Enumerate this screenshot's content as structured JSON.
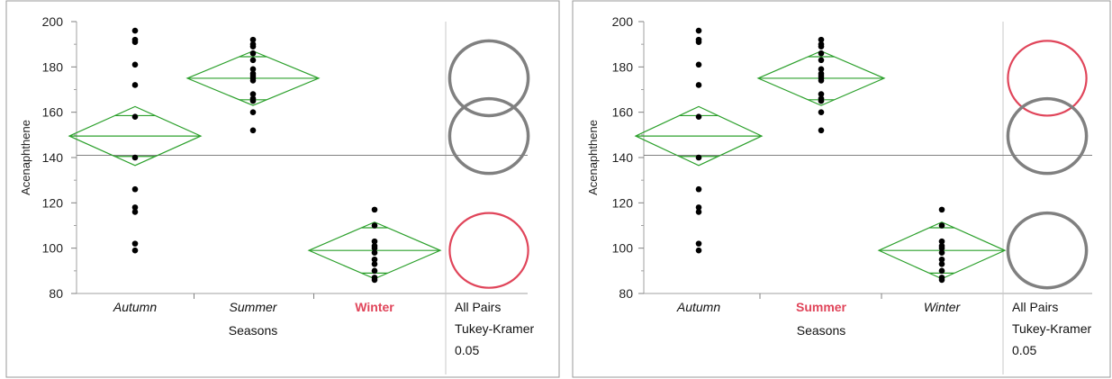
{
  "chart_data": [
    {
      "type": "scatter",
      "variant": "oneway-means-diamonds-with-tukey-comparison-circles",
      "ylabel": "Acenaphthene",
      "xlabel": "Seasons",
      "ylim": [
        80,
        200
      ],
      "yticks": [
        80,
        100,
        120,
        140,
        160,
        180,
        200
      ],
      "grand_mean": 141,
      "categories": [
        "Autumn",
        "Summer",
        "Winter"
      ],
      "selected_category": "Winter",
      "points": {
        "Autumn": [
          196,
          192,
          191,
          181,
          172,
          158,
          140,
          126,
          118,
          116,
          102,
          99
        ],
        "Summer": [
          192,
          190,
          189,
          186,
          183,
          179,
          177,
          176,
          175,
          174,
          168,
          166,
          165,
          160,
          152
        ],
        "Winter": [
          117,
          110,
          103,
          101,
          100,
          98,
          95,
          93,
          90,
          87,
          86
        ]
      },
      "diamonds": [
        {
          "category": "Autumn",
          "mean": 149.5,
          "ci_lower": 136.5,
          "ci_upper": 162.5,
          "overlap_lower": 140.5,
          "overlap_upper": 158.5
        },
        {
          "category": "Summer",
          "mean": 175,
          "ci_lower": 163,
          "ci_upper": 187,
          "overlap_lower": 165.5,
          "overlap_upper": 184.5
        },
        {
          "category": "Winter",
          "mean": 99,
          "ci_lower": 86.5,
          "ci_upper": 111.5,
          "overlap_lower": 89,
          "overlap_upper": 109
        }
      ],
      "comparison_circles": [
        {
          "category": "Summer",
          "center": 175,
          "radius": 16.5,
          "color": "#808080"
        },
        {
          "category": "Autumn",
          "center": 149.5,
          "radius": 16.5,
          "color": "#808080"
        },
        {
          "category": "Winter",
          "center": 99,
          "radius": 16.5,
          "color": "#e0455a"
        }
      ],
      "comparison_label_lines": [
        "All Pairs",
        "Tukey-Kramer",
        "0.05"
      ],
      "colors": {
        "diamond": "#2ca02c",
        "point": "#000000",
        "selected": "#e0455a",
        "unselected_circle": "#808080",
        "axis": "#808080",
        "grand_mean_line": "#808080"
      }
    },
    {
      "type": "scatter",
      "variant": "oneway-means-diamonds-with-tukey-comparison-circles",
      "ylabel": "Acenaphthene",
      "xlabel": "Seasons",
      "ylim": [
        80,
        200
      ],
      "yticks": [
        80,
        100,
        120,
        140,
        160,
        180,
        200
      ],
      "grand_mean": 141,
      "categories": [
        "Autumn",
        "Summer",
        "Winter"
      ],
      "selected_category": "Summer",
      "points": {
        "Autumn": [
          196,
          192,
          191,
          181,
          172,
          158,
          140,
          126,
          118,
          116,
          102,
          99
        ],
        "Summer": [
          192,
          190,
          189,
          186,
          183,
          179,
          177,
          176,
          175,
          174,
          168,
          166,
          165,
          160,
          152
        ],
        "Winter": [
          117,
          110,
          103,
          101,
          100,
          98,
          95,
          93,
          90,
          87,
          86
        ]
      },
      "diamonds": [
        {
          "category": "Autumn",
          "mean": 149.5,
          "ci_lower": 136.5,
          "ci_upper": 162.5,
          "overlap_lower": 140.5,
          "overlap_upper": 158.5
        },
        {
          "category": "Summer",
          "mean": 175,
          "ci_lower": 163,
          "ci_upper": 187,
          "overlap_lower": 165.5,
          "overlap_upper": 184.5
        },
        {
          "category": "Winter",
          "mean": 99,
          "ci_lower": 86.5,
          "ci_upper": 111.5,
          "overlap_lower": 89,
          "overlap_upper": 109
        }
      ],
      "comparison_circles": [
        {
          "category": "Summer",
          "center": 175,
          "radius": 16.5,
          "color": "#e0455a"
        },
        {
          "category": "Autumn",
          "center": 149.5,
          "radius": 16.5,
          "color": "#808080"
        },
        {
          "category": "Winter",
          "center": 99,
          "radius": 16.5,
          "color": "#808080"
        }
      ],
      "comparison_label_lines": [
        "All Pairs",
        "Tukey-Kramer",
        "0.05"
      ],
      "colors": {
        "diamond": "#2ca02c",
        "point": "#000000",
        "selected": "#e0455a",
        "unselected_circle": "#808080",
        "axis": "#808080",
        "grand_mean_line": "#808080"
      }
    }
  ]
}
